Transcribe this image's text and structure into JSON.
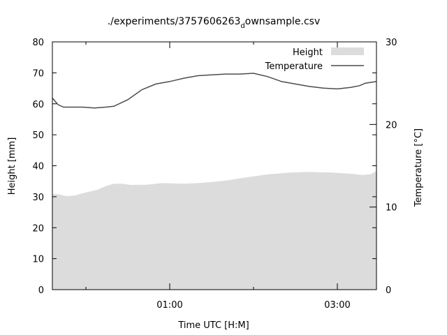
{
  "chart_data": {
    "type": "line",
    "title": "./experiments/3757606263",
    "title_subscript": "d",
    "title_suffix": "ownsample.csv",
    "xlabel": "Time UTC [H:M]",
    "ylabel": "Height [mm]",
    "y2label": "Temperature [°C]",
    "x_unit": "minutes since 00:00 UTC",
    "xlim": [
      -24,
      208
    ],
    "ylim": [
      0,
      80
    ],
    "y2lim": [
      0,
      30
    ],
    "xticks": [
      {
        "value": 60,
        "label": "01:00"
      },
      {
        "value": 180,
        "label": "03:00"
      }
    ],
    "xminor": [
      0,
      120
    ],
    "yticks": [
      {
        "value": 0,
        "label": "0"
      },
      {
        "value": 10,
        "label": "10"
      },
      {
        "value": 20,
        "label": "20"
      },
      {
        "value": 30,
        "label": "30"
      },
      {
        "value": 40,
        "label": "40"
      },
      {
        "value": 50,
        "label": "50"
      },
      {
        "value": 60,
        "label": "60"
      },
      {
        "value": 70,
        "label": "70"
      },
      {
        "value": 80,
        "label": "80"
      }
    ],
    "y2ticks": [
      {
        "value": 0,
        "label": "0"
      },
      {
        "value": 10,
        "label": "10"
      },
      {
        "value": 20,
        "label": "20"
      },
      {
        "value": 30,
        "label": "30"
      }
    ],
    "grid": false,
    "legend_position": "top-right",
    "series": [
      {
        "name": "Height",
        "style": "area",
        "axis": "y",
        "color": "#dcdcdc",
        "points": [
          [
            -24,
            30.8
          ],
          [
            -20,
            30.8
          ],
          [
            -14,
            30.2
          ],
          [
            -8,
            30.4
          ],
          [
            0,
            31.4
          ],
          [
            8,
            32.2
          ],
          [
            14,
            33.4
          ],
          [
            20,
            34.2
          ],
          [
            26,
            34.2
          ],
          [
            32,
            33.8
          ],
          [
            44,
            33.9
          ],
          [
            54,
            34.4
          ],
          [
            70,
            34.2
          ],
          [
            84,
            34.5
          ],
          [
            100,
            35.2
          ],
          [
            114,
            36.2
          ],
          [
            130,
            37.2
          ],
          [
            146,
            37.8
          ],
          [
            160,
            38.0
          ],
          [
            176,
            37.8
          ],
          [
            190,
            37.4
          ],
          [
            198,
            37.0
          ],
          [
            204,
            37.3
          ],
          [
            208,
            38.3
          ]
        ]
      },
      {
        "name": "Temperature",
        "style": "line",
        "axis": "y2",
        "color": "#4c4c4c",
        "points": [
          [
            -24,
            23.2
          ],
          [
            -20,
            22.4
          ],
          [
            -16,
            22.1
          ],
          [
            -10,
            22.1
          ],
          [
            -2,
            22.1
          ],
          [
            6,
            22.0
          ],
          [
            14,
            22.1
          ],
          [
            20,
            22.2
          ],
          [
            30,
            23.0
          ],
          [
            40,
            24.2
          ],
          [
            50,
            24.9
          ],
          [
            60,
            25.2
          ],
          [
            70,
            25.6
          ],
          [
            80,
            25.9
          ],
          [
            90,
            26.0
          ],
          [
            100,
            26.1
          ],
          [
            110,
            26.1
          ],
          [
            120,
            26.2
          ],
          [
            130,
            25.8
          ],
          [
            140,
            25.2
          ],
          [
            150,
            24.9
          ],
          [
            160,
            24.6
          ],
          [
            170,
            24.4
          ],
          [
            180,
            24.3
          ],
          [
            190,
            24.5
          ],
          [
            196,
            24.7
          ],
          [
            200,
            25.0
          ],
          [
            208,
            25.2
          ]
        ]
      }
    ]
  }
}
